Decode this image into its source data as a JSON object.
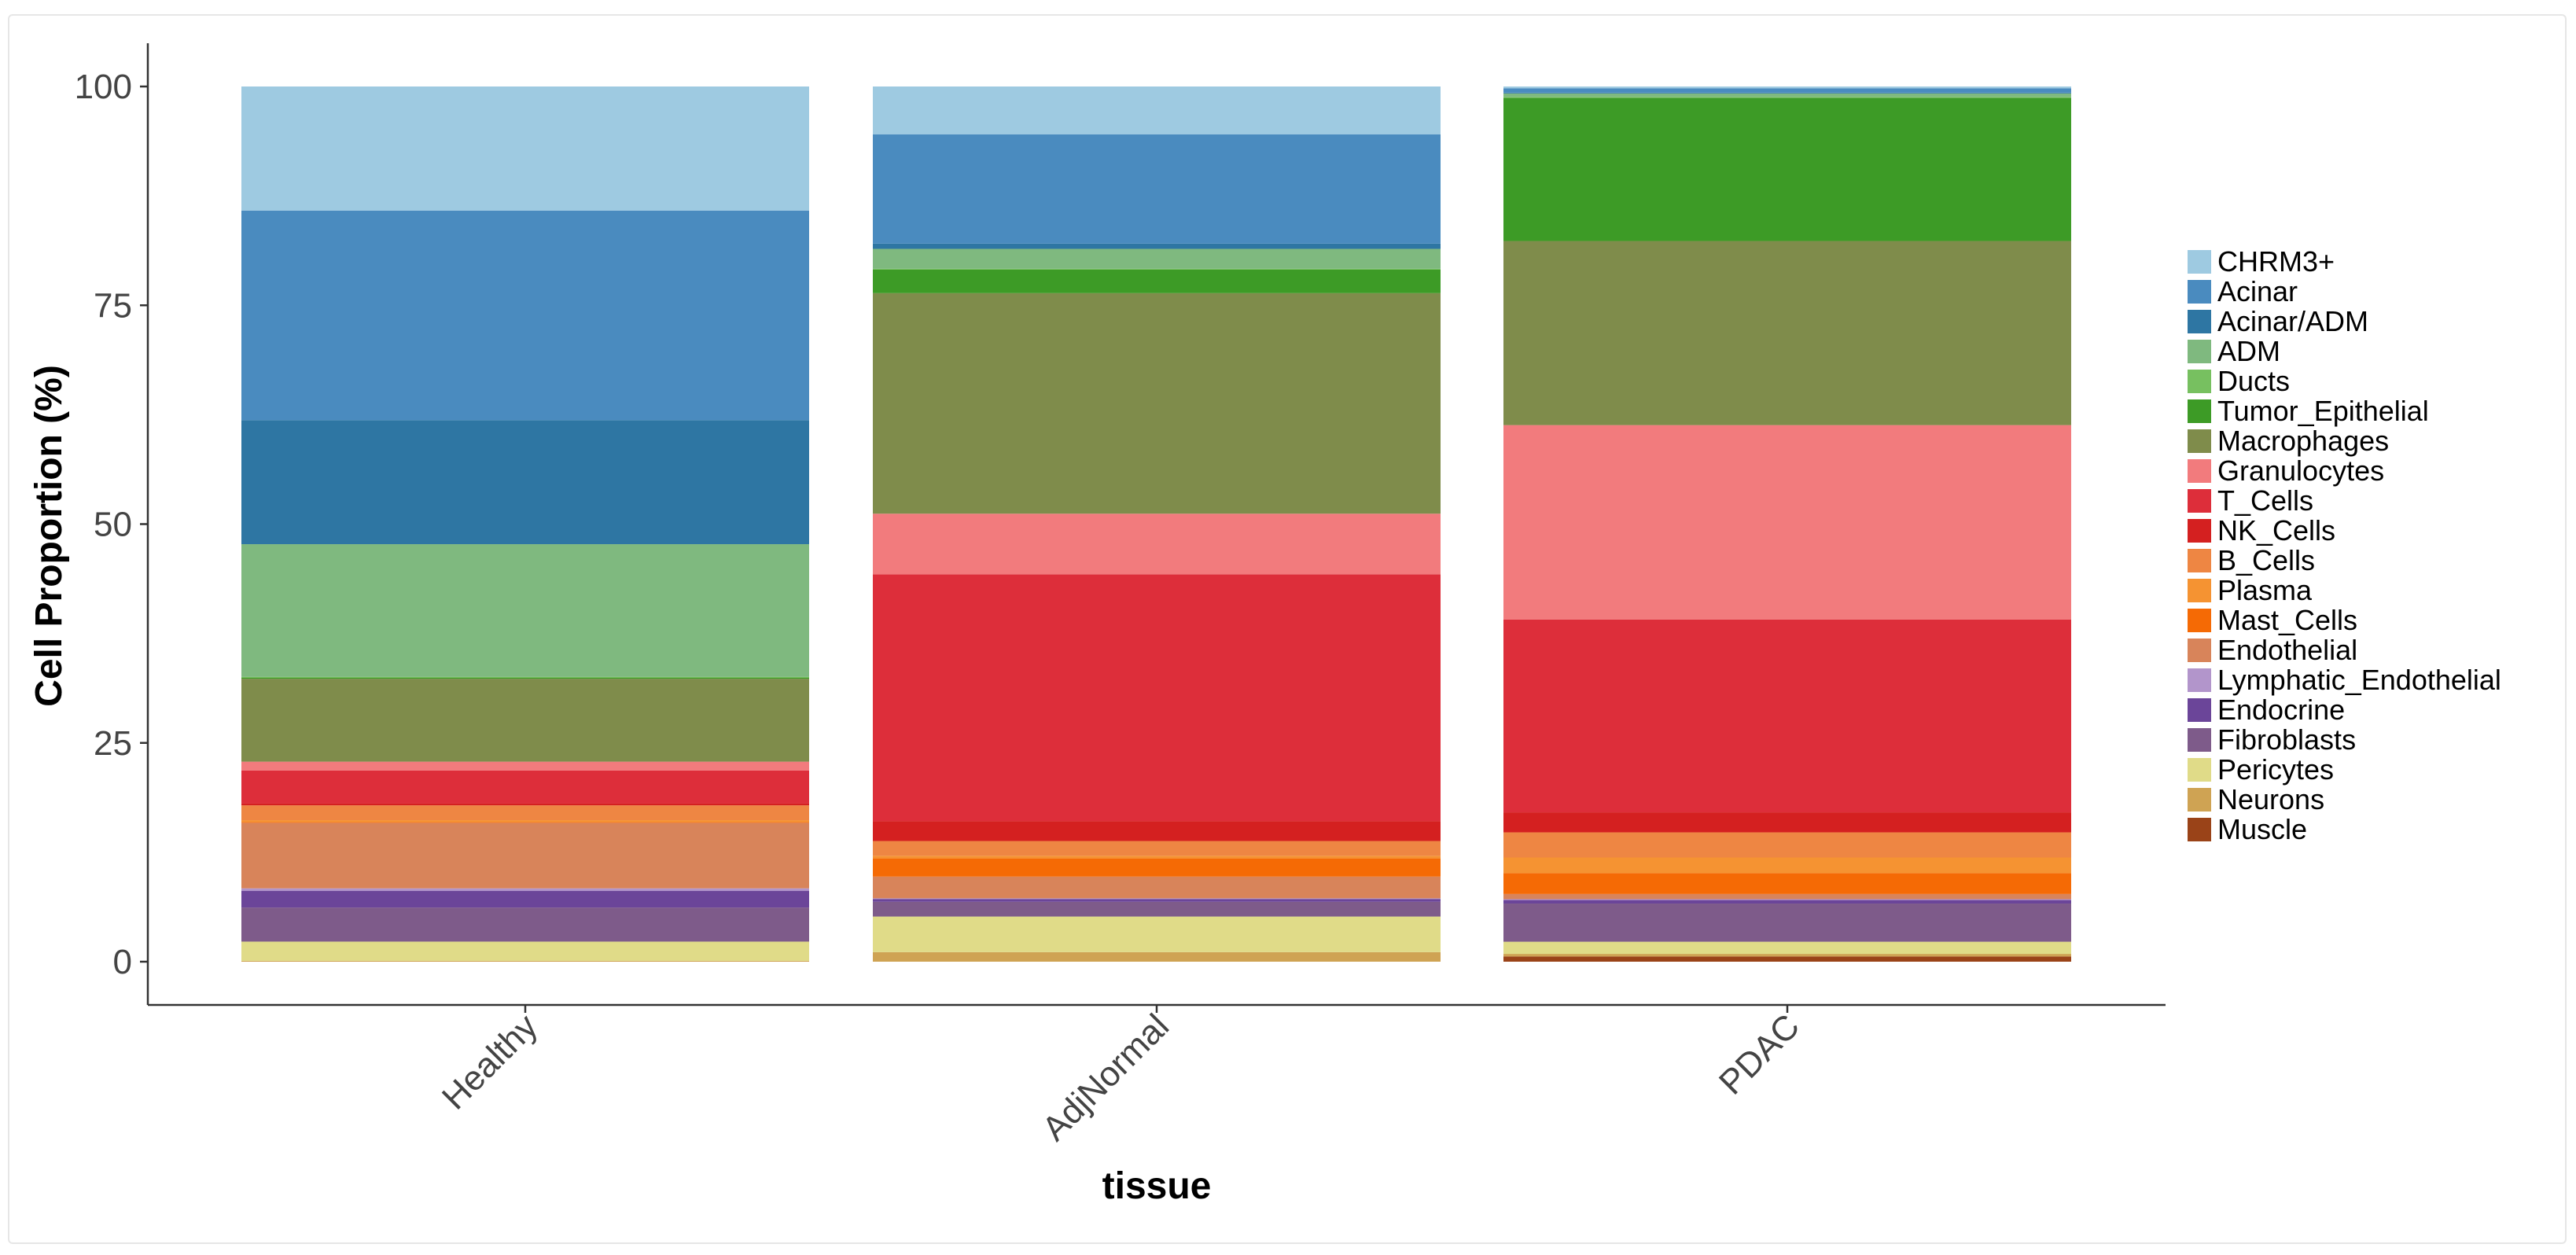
{
  "chart_data": {
    "type": "bar",
    "stacked": true,
    "xlabel": "tissue",
    "ylabel": "Cell Proportion (%)",
    "ylim": [
      0,
      100
    ],
    "yticks": [
      0,
      25,
      50,
      75,
      100
    ],
    "categories": [
      "Healthy",
      "AdjNormal",
      "PDAC"
    ],
    "legend_position": "right",
    "grid": false,
    "series": [
      {
        "name": "CHRM3+",
        "color": "#9ecae1",
        "values": [
          14.2,
          5.5,
          0.2
        ]
      },
      {
        "name": "Acinar",
        "color": "#4a8bbf",
        "values": [
          24.0,
          12.6,
          0.5
        ]
      },
      {
        "name": "Acinar/ADM",
        "color": "#2e76a3",
        "values": [
          14.2,
          0.6,
          0.1
        ]
      },
      {
        "name": "ADM",
        "color": "#7fb97f",
        "values": [
          15.2,
          2.3,
          0.4
        ]
      },
      {
        "name": "Ducts",
        "color": "#77c060",
        "values": [
          0.1,
          0.1,
          0.1
        ]
      },
      {
        "name": "Tumor_Epithelial",
        "color": "#3d9b26",
        "values": [
          0.1,
          2.7,
          16.5
        ]
      },
      {
        "name": "Macrophages",
        "color": "#7f8c4b",
        "values": [
          9.5,
          25.4,
          21.2
        ]
      },
      {
        "name": "Granulocytes",
        "color": "#f27b7d",
        "values": [
          1.0,
          7.0,
          22.4
        ]
      },
      {
        "name": "T_Cells",
        "color": "#dd2e3a",
        "values": [
          3.8,
          28.4,
          22.2
        ]
      },
      {
        "name": "NK_Cells",
        "color": "#d42020",
        "values": [
          0.2,
          2.3,
          2.3
        ]
      },
      {
        "name": "B_Cells",
        "color": "#ee8643",
        "values": [
          1.7,
          1.7,
          2.9
        ]
      },
      {
        "name": "Plasma",
        "color": "#f59332",
        "values": [
          0.2,
          0.3,
          1.8
        ]
      },
      {
        "name": "Mast_Cells",
        "color": "#f56a05",
        "values": [
          0.1,
          2.1,
          2.4
        ]
      },
      {
        "name": "Endothelial",
        "color": "#d8845a",
        "values": [
          7.5,
          2.5,
          0.6
        ]
      },
      {
        "name": "Lymphatic_Endothelial",
        "color": "#b295cb",
        "values": [
          0.3,
          0.1,
          0.1
        ]
      },
      {
        "name": "Endocrine",
        "color": "#6b4599",
        "values": [
          1.9,
          0.3,
          0.4
        ]
      },
      {
        "name": "Fibroblasts",
        "color": "#7e5b8a",
        "values": [
          3.9,
          1.7,
          4.4
        ]
      },
      {
        "name": "Pericytes",
        "color": "#e0db88",
        "values": [
          2.2,
          4.1,
          1.4
        ]
      },
      {
        "name": "Neurons",
        "color": "#cfa353",
        "values": [
          0.1,
          1.1,
          0.3
        ]
      },
      {
        "name": "Muscle",
        "color": "#9a4318",
        "values": [
          0.0,
          0.0,
          0.6
        ]
      }
    ]
  }
}
